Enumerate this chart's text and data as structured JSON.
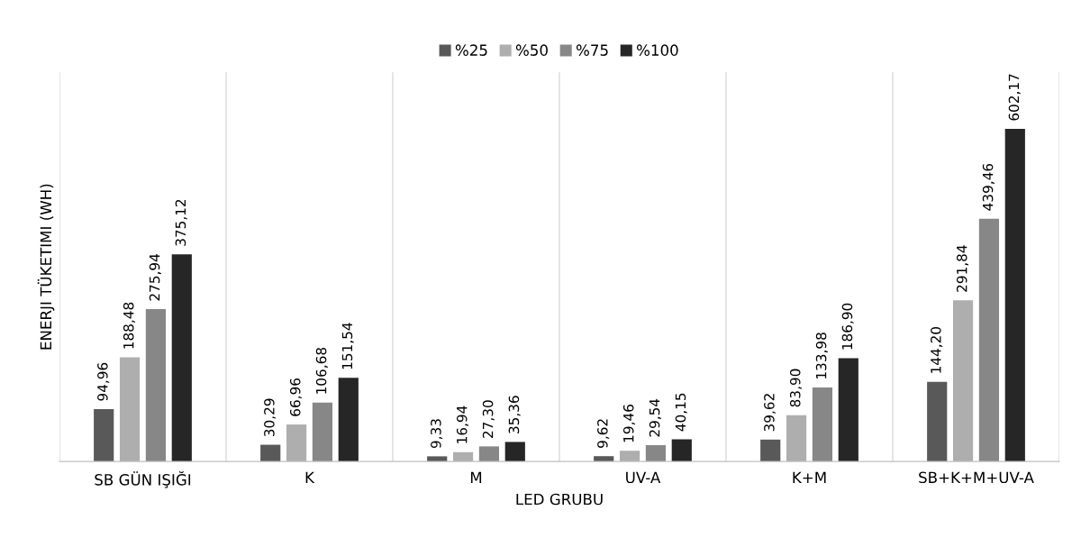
{
  "chart_data": {
    "type": "bar",
    "xlabel": "LED GRUBU",
    "ylabel": "ENERJI TÜKETIMI (WH)",
    "categories": [
      "SB GÜN IŞIĞI",
      "K",
      "M",
      "UV-A",
      "K+M",
      "SB+K+M+UV-A"
    ],
    "series": [
      {
        "name": "%25",
        "color": "#595959",
        "values": [
          94.96,
          30.29,
          9.33,
          9.62,
          39.62,
          144.2
        ],
        "value_labels": [
          "94,96",
          "30,29",
          "9,33",
          "9,62",
          "39,62",
          "144,20"
        ]
      },
      {
        "name": "%50",
        "color": "#aeaeae",
        "values": [
          188.48,
          66.96,
          16.94,
          19.46,
          83.9,
          291.84
        ],
        "value_labels": [
          "188,48",
          "66,96",
          "16,94",
          "19,46",
          "83,90",
          "291,84"
        ]
      },
      {
        "name": "%75",
        "color": "#878787",
        "values": [
          275.94,
          106.68,
          27.3,
          29.54,
          133.98,
          439.46
        ],
        "value_labels": [
          "275,94",
          "106,68",
          "27,30",
          "29,54",
          "133,98",
          "439,46"
        ]
      },
      {
        "name": "%100",
        "color": "#262626",
        "values": [
          375.12,
          151.54,
          35.36,
          40.15,
          186.9,
          602.17
        ],
        "value_labels": [
          "375,12",
          "151,54",
          "35,36",
          "40,15",
          "186,90",
          "602,17"
        ]
      }
    ],
    "grid": "x",
    "legend": "top",
    "tick_labels": "x"
  }
}
